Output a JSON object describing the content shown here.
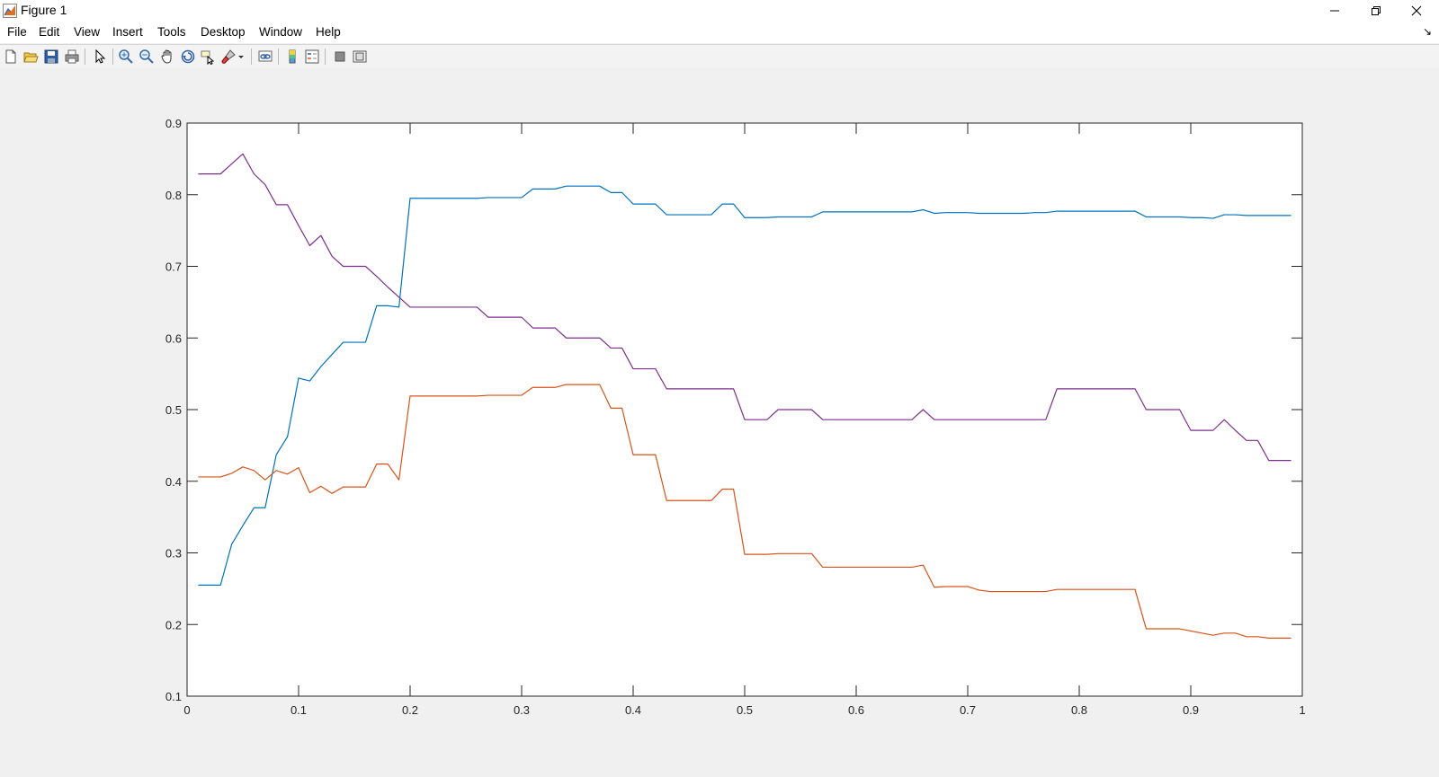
{
  "window": {
    "title": "Figure 1"
  },
  "menu": {
    "items": [
      "File",
      "Edit",
      "View",
      "Insert",
      "Tools",
      "Desktop",
      "Window",
      "Help"
    ]
  },
  "toolbar": {
    "tools": [
      "new-figure-icon",
      "open-file-icon",
      "save-icon",
      "print-icon",
      "pointer-icon",
      "zoom-in-icon",
      "zoom-out-icon",
      "pan-icon",
      "rotate-3d-icon",
      "data-cursor-icon",
      "brush-icon",
      "link-plot-icon",
      "colorbar-icon",
      "legend-icon",
      "hide-plot-tools-icon",
      "show-plot-tools-icon"
    ]
  },
  "chart_data": {
    "type": "line",
    "title": "",
    "xlabel": "",
    "ylabel": "",
    "xlim": [
      0,
      1
    ],
    "ylim": [
      0.1,
      0.9
    ],
    "xticks": [
      "0",
      "0.1",
      "0.2",
      "0.3",
      "0.4",
      "0.5",
      "0.6",
      "0.7",
      "0.8",
      "0.9",
      "1"
    ],
    "yticks": [
      "0.1",
      "0.2",
      "0.3",
      "0.4",
      "0.5",
      "0.6",
      "0.7",
      "0.8",
      "0.9"
    ],
    "grid": false,
    "x": [
      0.01,
      0.02,
      0.03,
      0.04,
      0.05,
      0.06,
      0.07,
      0.08,
      0.09,
      0.1,
      0.11,
      0.12,
      0.13,
      0.14,
      0.15,
      0.16,
      0.17,
      0.18,
      0.19,
      0.2,
      0.21,
      0.22,
      0.23,
      0.24,
      0.25,
      0.26,
      0.27,
      0.28,
      0.29,
      0.3,
      0.31,
      0.32,
      0.33,
      0.34,
      0.35,
      0.36,
      0.37,
      0.38,
      0.39,
      0.4,
      0.41,
      0.42,
      0.43,
      0.44,
      0.45,
      0.46,
      0.47,
      0.48,
      0.49,
      0.5,
      0.51,
      0.52,
      0.53,
      0.54,
      0.55,
      0.56,
      0.57,
      0.58,
      0.59,
      0.6,
      0.61,
      0.62,
      0.63,
      0.64,
      0.65,
      0.66,
      0.67,
      0.68,
      0.69,
      0.7,
      0.71,
      0.72,
      0.73,
      0.74,
      0.75,
      0.76,
      0.77,
      0.78,
      0.79,
      0.8,
      0.81,
      0.82,
      0.83,
      0.84,
      0.85,
      0.86,
      0.87,
      0.88,
      0.89,
      0.9,
      0.91,
      0.92,
      0.93,
      0.94,
      0.95,
      0.96,
      0.97,
      0.98,
      0.99
    ],
    "series": [
      {
        "color": "#0072bd",
        "values": [
          0.255,
          0.255,
          0.255,
          0.312,
          0.338,
          0.363,
          0.363,
          0.437,
          0.462,
          0.544,
          0.54,
          0.56,
          0.577,
          0.594,
          0.594,
          0.594,
          0.645,
          0.645,
          0.643,
          0.795,
          0.795,
          0.795,
          0.795,
          0.795,
          0.795,
          0.795,
          0.796,
          0.796,
          0.796,
          0.796,
          0.808,
          0.808,
          0.808,
          0.812,
          0.812,
          0.812,
          0.812,
          0.803,
          0.803,
          0.787,
          0.787,
          0.787,
          0.772,
          0.772,
          0.772,
          0.772,
          0.772,
          0.787,
          0.787,
          0.768,
          0.768,
          0.768,
          0.769,
          0.769,
          0.769,
          0.769,
          0.776,
          0.776,
          0.776,
          0.776,
          0.776,
          0.776,
          0.776,
          0.776,
          0.776,
          0.779,
          0.774,
          0.775,
          0.775,
          0.775,
          0.774,
          0.774,
          0.774,
          0.774,
          0.774,
          0.775,
          0.775,
          0.777,
          0.777,
          0.777,
          0.777,
          0.777,
          0.777,
          0.777,
          0.777,
          0.769,
          0.769,
          0.769,
          0.769,
          0.768,
          0.768,
          0.767,
          0.772,
          0.772,
          0.771,
          0.771,
          0.771,
          0.771,
          0.771
        ]
      },
      {
        "color": "#d95319",
        "values": [
          0.406,
          0.406,
          0.406,
          0.411,
          0.42,
          0.415,
          0.402,
          0.415,
          0.41,
          0.419,
          0.384,
          0.393,
          0.383,
          0.392,
          0.392,
          0.392,
          0.424,
          0.424,
          0.402,
          0.519,
          0.519,
          0.519,
          0.519,
          0.519,
          0.519,
          0.519,
          0.52,
          0.52,
          0.52,
          0.52,
          0.531,
          0.531,
          0.531,
          0.535,
          0.535,
          0.535,
          0.535,
          0.502,
          0.502,
          0.437,
          0.437,
          0.437,
          0.373,
          0.373,
          0.373,
          0.373,
          0.373,
          0.389,
          0.389,
          0.298,
          0.298,
          0.298,
          0.299,
          0.299,
          0.299,
          0.299,
          0.28,
          0.28,
          0.28,
          0.28,
          0.28,
          0.28,
          0.28,
          0.28,
          0.28,
          0.283,
          0.252,
          0.253,
          0.253,
          0.253,
          0.248,
          0.246,
          0.246,
          0.246,
          0.246,
          0.246,
          0.246,
          0.249,
          0.249,
          0.249,
          0.249,
          0.249,
          0.249,
          0.249,
          0.249,
          0.194,
          0.194,
          0.194,
          0.194,
          0.191,
          0.188,
          0.185,
          0.188,
          0.188,
          0.183,
          0.183,
          0.181,
          0.181,
          0.181
        ]
      },
      {
        "color": "#7e2f8e",
        "values": [
          0.829,
          0.829,
          0.829,
          0.843,
          0.857,
          0.829,
          0.814,
          0.786,
          0.786,
          0.757,
          0.729,
          0.743,
          0.714,
          0.7,
          0.7,
          0.7,
          0.686,
          0.671,
          0.657,
          0.643,
          0.643,
          0.643,
          0.643,
          0.643,
          0.643,
          0.643,
          0.629,
          0.629,
          0.629,
          0.629,
          0.614,
          0.614,
          0.614,
          0.6,
          0.6,
          0.6,
          0.6,
          0.586,
          0.586,
          0.557,
          0.557,
          0.557,
          0.529,
          0.529,
          0.529,
          0.529,
          0.529,
          0.529,
          0.529,
          0.486,
          0.486,
          0.486,
          0.5,
          0.5,
          0.5,
          0.5,
          0.486,
          0.486,
          0.486,
          0.486,
          0.486,
          0.486,
          0.486,
          0.486,
          0.486,
          0.5,
          0.486,
          0.486,
          0.486,
          0.486,
          0.486,
          0.486,
          0.486,
          0.486,
          0.486,
          0.486,
          0.486,
          0.529,
          0.529,
          0.529,
          0.529,
          0.529,
          0.529,
          0.529,
          0.529,
          0.5,
          0.5,
          0.5,
          0.5,
          0.471,
          0.471,
          0.471,
          0.486,
          0.471,
          0.457,
          0.457,
          0.429,
          0.429,
          0.429
        ]
      }
    ]
  }
}
